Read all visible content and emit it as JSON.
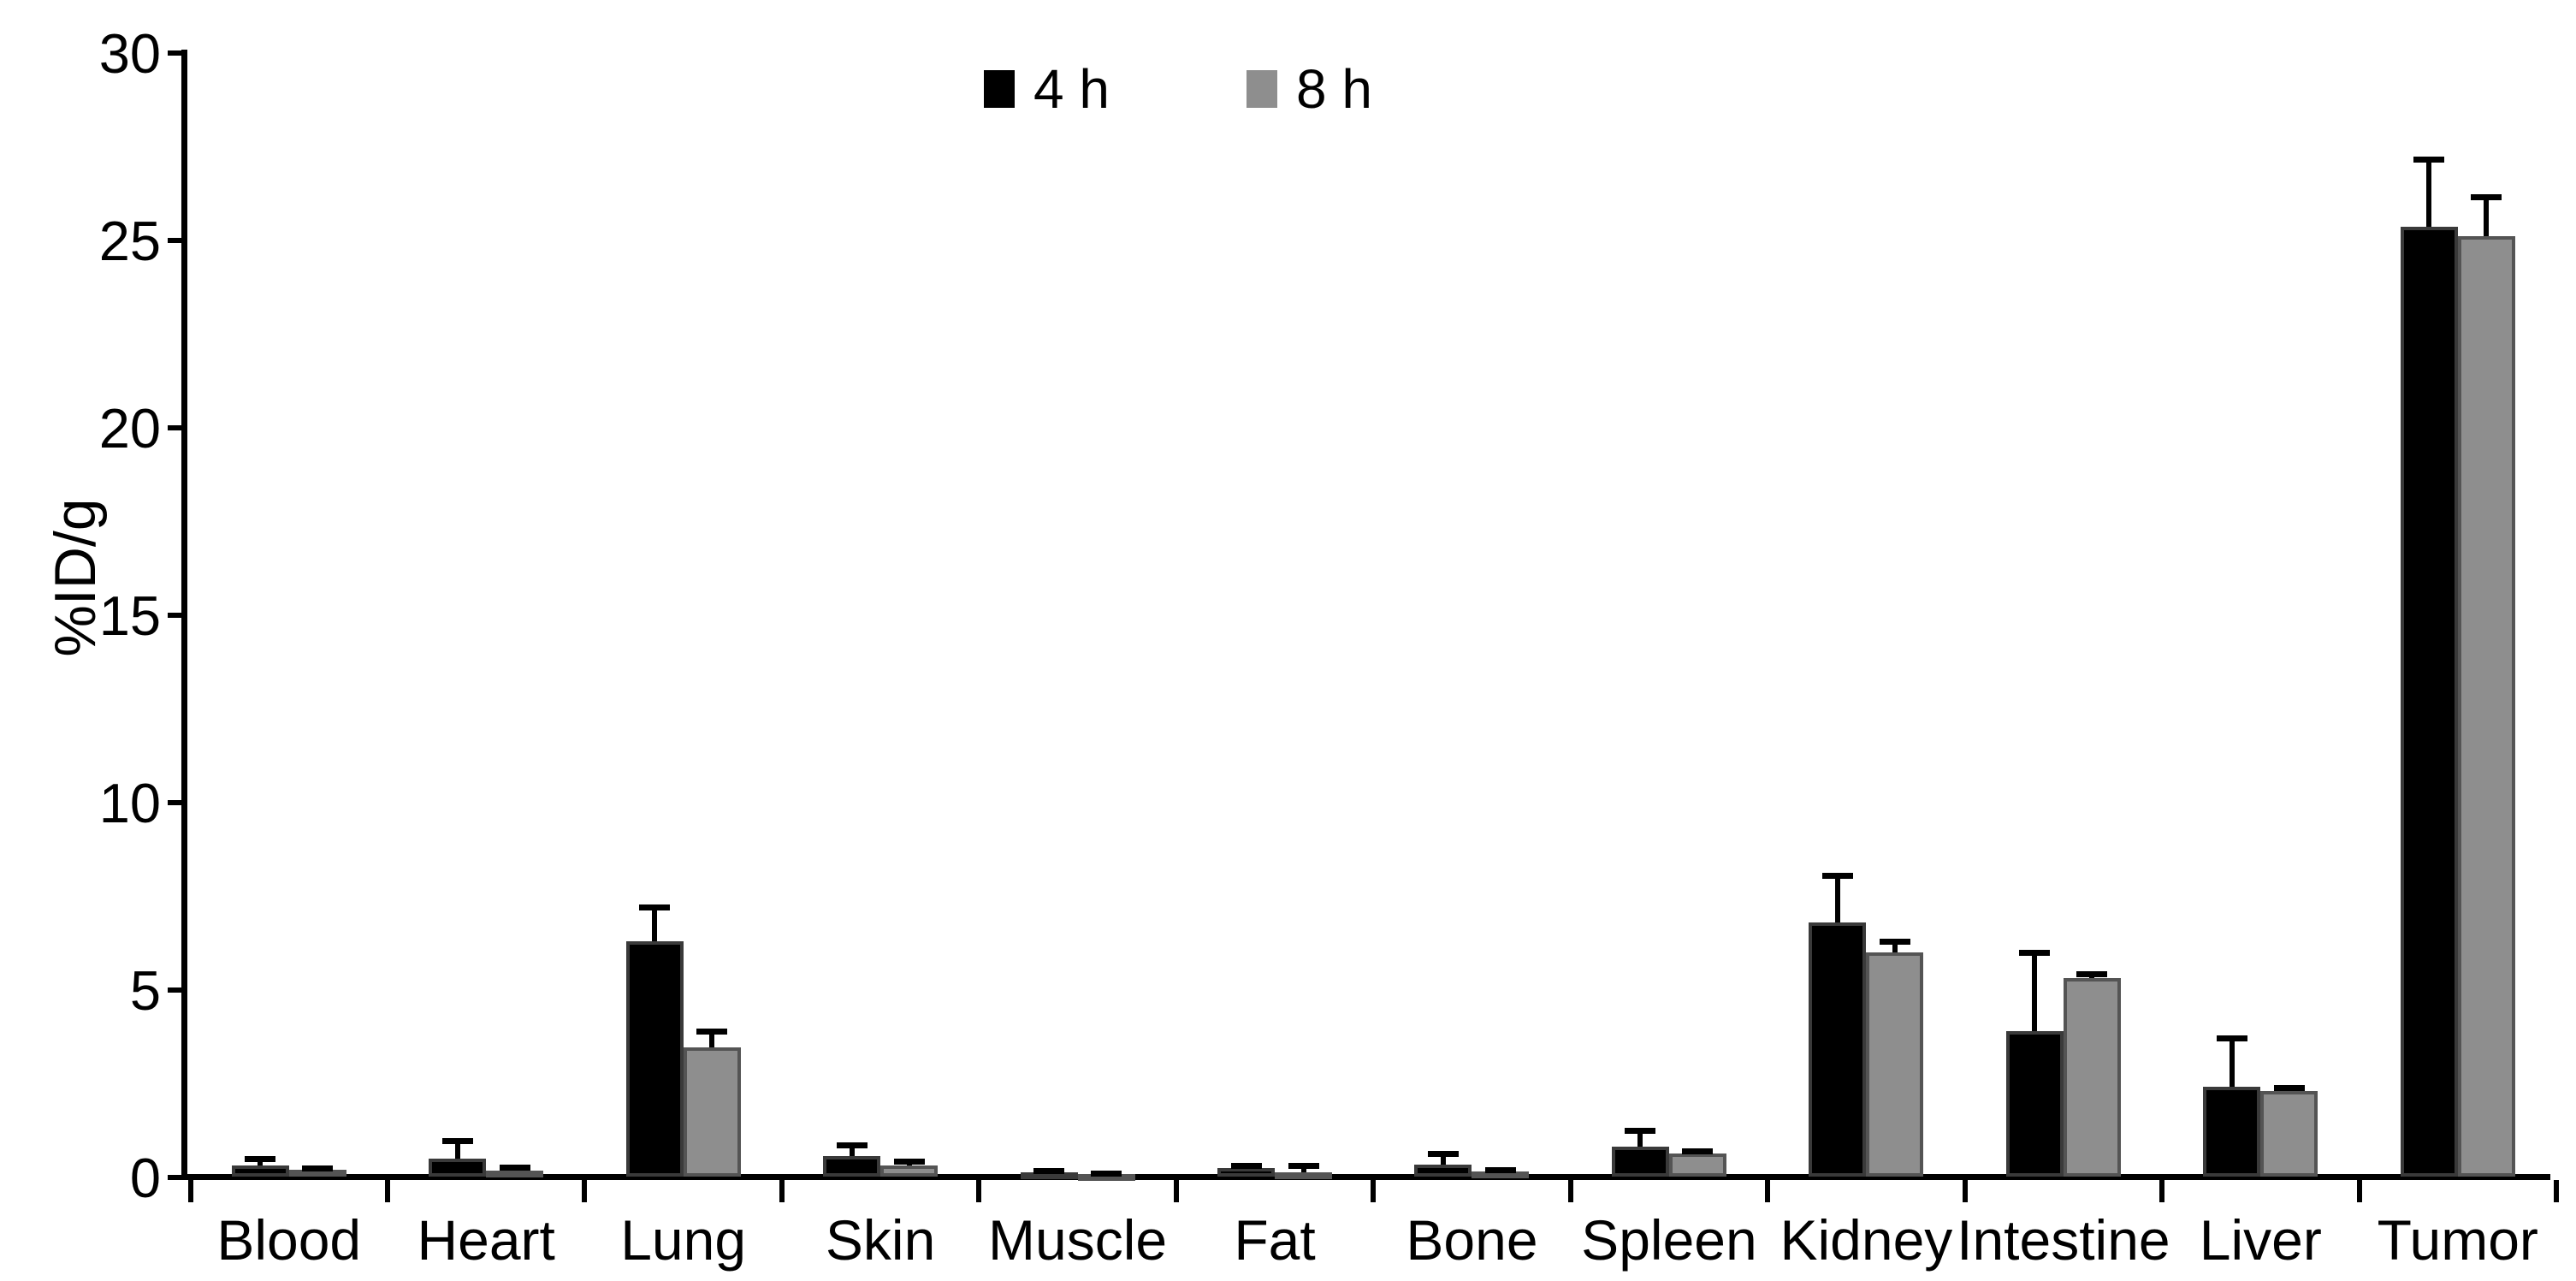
{
  "figure": {
    "background": "#ffffff",
    "axis_color": "#000000",
    "bar_border_black": "#3a3a3a",
    "bar_border_gray": "#545454",
    "error_bar_color": "#000000"
  },
  "chart_data": {
    "type": "bar",
    "title": "",
    "xlabel": "",
    "ylabel": "%ID/g",
    "ylim": [
      0,
      30
    ],
    "yticks": [
      0,
      5,
      10,
      15,
      20,
      25,
      30
    ],
    "grid": false,
    "legend_position": "top-center",
    "error_bars": "upper only, SD",
    "categories": [
      "Blood",
      "Heart",
      "Lung",
      "Skin",
      "Muscle",
      "Fat",
      "Bone",
      "Spleen",
      "Kidney",
      "Intestine",
      "Liver",
      "Tumor"
    ],
    "series": [
      {
        "name": "4 h",
        "color": "#000000",
        "values": [
          0.3,
          0.5,
          6.3,
          0.55,
          0.13,
          0.25,
          0.32,
          0.8,
          6.8,
          3.9,
          2.4,
          25.35
        ],
        "errors": [
          0.2,
          0.47,
          0.9,
          0.3,
          0.05,
          0.05,
          0.3,
          0.45,
          1.25,
          2.1,
          1.3,
          1.8
        ]
      },
      {
        "name": "8 h",
        "color": "#8e8e8e",
        "values": [
          0.2,
          0.18,
          3.45,
          0.3,
          0.08,
          0.12,
          0.15,
          0.63,
          6.0,
          5.3,
          2.3,
          25.1
        ],
        "errors": [
          0.04,
          0.08,
          0.45,
          0.12,
          0.03,
          0.18,
          0.05,
          0.06,
          0.28,
          0.13,
          0.08,
          1.05
        ]
      }
    ]
  }
}
